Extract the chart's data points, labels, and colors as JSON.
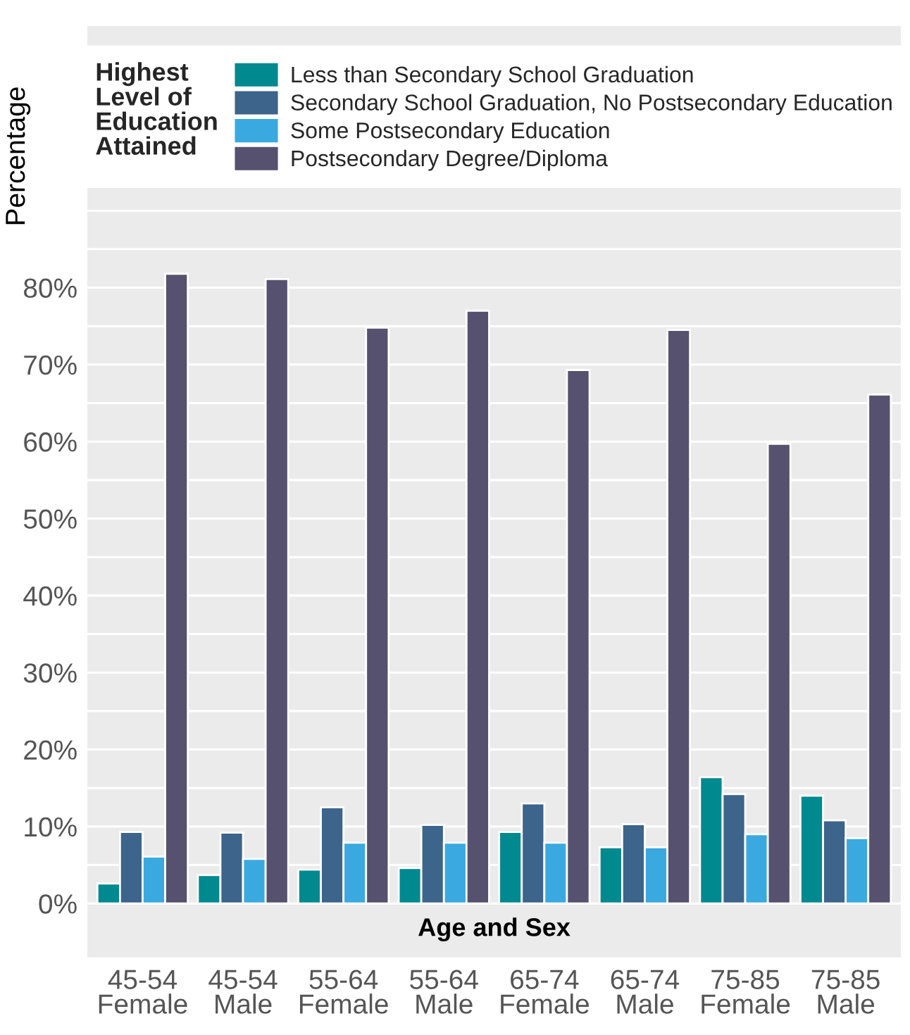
{
  "chart_data": {
    "type": "bar",
    "xlabel": "Age and Sex",
    "ylabel": "Percentage",
    "legend_title": "Highest\nLevel of\nEducation\nAttained",
    "categories": [
      "45-54\nFemale",
      "45-54\nMale",
      "55-64\nFemale",
      "55-64\nMale",
      "65-74\nFemale",
      "65-74\nMale",
      "75-85\nFemale",
      "75-85\nMale"
    ],
    "series": [
      {
        "name": "Less than Secondary School Graduation",
        "color": "#00898f",
        "values": [
          2.6,
          3.7,
          4.4,
          4.6,
          9.3,
          7.3,
          16.4,
          14.0
        ]
      },
      {
        "name": "Secondary School Graduation, No Postsecondary Education",
        "color": "#3d648a",
        "values": [
          9.3,
          9.2,
          12.5,
          10.2,
          13.0,
          10.3,
          14.2,
          10.8
        ]
      },
      {
        "name": "Some Postsecondary Education",
        "color": "#3aa9e0",
        "values": [
          6.1,
          5.8,
          7.9,
          7.9,
          7.9,
          7.3,
          9.0,
          8.5
        ]
      },
      {
        "name": "Postsecondary Degree/Diploma",
        "color": "#55516e",
        "values": [
          81.8,
          81.1,
          74.8,
          77.0,
          69.3,
          74.5,
          59.7,
          66.1
        ]
      }
    ],
    "ylim": [
      -7,
      114
    ],
    "yticks": [
      {
        "value": 0,
        "label": "0%"
      },
      {
        "value": 10,
        "label": "10%"
      },
      {
        "value": 20,
        "label": "20%"
      },
      {
        "value": 30,
        "label": "30%"
      },
      {
        "value": 40,
        "label": "40%"
      },
      {
        "value": 50,
        "label": "50%"
      },
      {
        "value": 60,
        "label": "60%"
      },
      {
        "value": 70,
        "label": "70%"
      },
      {
        "value": 80,
        "label": "80%"
      }
    ],
    "grid": true,
    "legend": "top"
  }
}
